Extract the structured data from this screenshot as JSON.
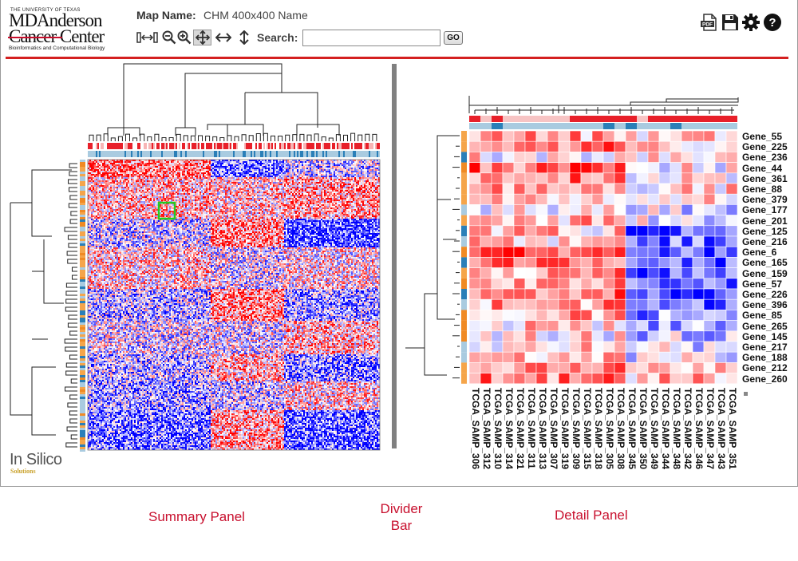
{
  "header": {
    "logo": {
      "small_text": "THE UNIVERSITY OF TEXAS",
      "line1": "MDAnderson",
      "line2": "Cancer Center",
      "subtitle": "Bioinformatics and Computational Biology"
    },
    "map_name_label": "Map Name:",
    "map_name_value": "CHM 400x400 Name",
    "search": {
      "label": "Search:",
      "value": "",
      "placeholder": "",
      "go_label": "GO"
    },
    "toolbar_icons": [
      "zoom-reset-icon",
      "zoom-out-icon",
      "zoom-in-icon",
      "full-view-icon",
      "horizontal-view-icon",
      "vertical-view-icon"
    ],
    "right_icons": [
      "pdf-icon",
      "save-icon",
      "gear-icon",
      "help-icon"
    ]
  },
  "colors": {
    "accent": "#d42020",
    "heat_high": "#ff0000",
    "heat_mid": "#ffffff",
    "heat_low": "#0000ff",
    "covariate_blue": "#2a7fb8",
    "covariate_orange": "#f08a24",
    "covariate_light": "#a9cbe0"
  },
  "summary_panel": {
    "caption": "Summary Panel",
    "branding_line1": "In Silico",
    "branding_line2": "Solutions"
  },
  "divider": {
    "caption_line1": "Divider",
    "caption_line2": "Bar"
  },
  "detail_panel": {
    "caption": "Detail Panel",
    "row_labels": [
      "Gene_55",
      "Gene_225",
      "Gene_236",
      "Gene_44",
      "Gene_361",
      "Gene_88",
      "Gene_379",
      "Gene_177",
      "Gene_201",
      "Gene_125",
      "Gene_216",
      "Gene_6",
      "Gene_165",
      "Gene_159",
      "Gene_57",
      "Gene_226",
      "Gene_396",
      "Gene_85",
      "Gene_265",
      "Gene_145",
      "Gene_217",
      "Gene_188",
      "Gene_212",
      "Gene_260"
    ],
    "col_labels": [
      "TCGA_SAMP_306",
      "TCGA_SAMP_312",
      "TCGA_SAMP_310",
      "TCGA_SAMP_314",
      "TCGA_SAMP_321",
      "TCGA_SAMP_311",
      "TCGA_SAMP_313",
      "TCGA_SAMP_307",
      "TCGA_SAMP_319",
      "TCGA_SAMP_309",
      "TCGA_SAMP_315",
      "TCGA_SAMP_318",
      "TCGA_SAMP_305",
      "TCGA_SAMP_308",
      "TCGA_SAMP_345",
      "TCGA_SAMP_350",
      "TCGA_SAMP_349",
      "TCGA_SAMP_344",
      "TCGA_SAMP_348",
      "TCGA_SAMP_342",
      "TCGA_SAMP_346",
      "TCGA_SAMP_347",
      "TCGA_SAMP_343",
      "TCGA_SAMP_351"
    ]
  }
}
